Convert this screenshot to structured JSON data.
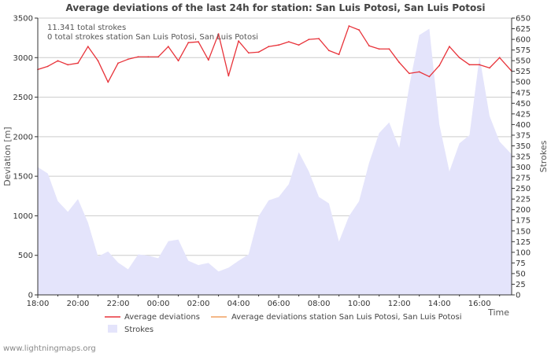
{
  "chart_data": {
    "type": "line",
    "title": "Average deviations of the last 24h for station: San Luis Potosi, San Luis Potosi",
    "xlabel": "Time",
    "ylabel": "Deviation  [m]",
    "y2label": "Strokes",
    "ylim": [
      0,
      3500
    ],
    "y2lim": [
      0,
      650
    ],
    "yticks": [
      0,
      500,
      1000,
      1500,
      2000,
      2500,
      3000,
      3500
    ],
    "y2ticks": [
      0,
      25,
      50,
      75,
      100,
      125,
      150,
      175,
      200,
      225,
      250,
      275,
      300,
      325,
      350,
      375,
      400,
      425,
      450,
      475,
      500,
      525,
      550,
      575,
      600,
      625,
      650
    ],
    "xlim": [
      0,
      23.6
    ],
    "xticks": [
      {
        "value": 0,
        "label": "18:00"
      },
      {
        "value": 2,
        "label": "20:00"
      },
      {
        "value": 4,
        "label": "22:00"
      },
      {
        "value": 6,
        "label": "00:00"
      },
      {
        "value": 8,
        "label": "02:00"
      },
      {
        "value": 10,
        "label": "04:00"
      },
      {
        "value": 12,
        "label": "06:00"
      },
      {
        "value": 14,
        "label": "08:00"
      },
      {
        "value": 16,
        "label": "10:00"
      },
      {
        "value": 18,
        "label": "12:00"
      },
      {
        "value": 20,
        "label": "14:00"
      },
      {
        "value": 22,
        "label": "16:00"
      }
    ],
    "annotations": [
      "11.341 total strokes",
      "0 total strokes station San Luis Potosi, San Luis Potosi"
    ],
    "series": [
      {
        "name": "Average deviations",
        "color": "#e8333a",
        "axis": "left",
        "x": [
          0,
          0.5,
          1,
          1.5,
          2,
          2.5,
          3,
          3.5,
          4,
          4.5,
          5,
          5.5,
          6,
          6.5,
          7,
          7.5,
          8,
          8.5,
          9,
          9.5,
          10,
          10.5,
          11,
          11.5,
          12,
          12.5,
          13,
          13.5,
          14,
          14.5,
          15,
          15.5,
          16,
          16.5,
          17,
          17.5,
          18,
          18.5,
          19,
          19.5,
          20,
          20.5,
          21,
          21.5,
          22,
          22.5,
          23,
          23.6
        ],
        "values": [
          2850,
          2890,
          2960,
          2910,
          2930,
          3140,
          2960,
          2690,
          2930,
          2980,
          3010,
          3010,
          3010,
          3140,
          2960,
          3190,
          3200,
          2970,
          3300,
          2770,
          3210,
          3060,
          3070,
          3140,
          3160,
          3200,
          3160,
          3230,
          3240,
          3090,
          3040,
          3400,
          3350,
          3150,
          3110,
          3110,
          2940,
          2800,
          2820,
          2760,
          2900,
          3140,
          3000,
          2910,
          2910,
          2870,
          3000,
          2830
        ]
      },
      {
        "name": "Average deviations station San Luis Potosi, San Luis Potosi",
        "color": "#f0a060",
        "axis": "left",
        "x": [],
        "values": []
      },
      {
        "name": "Strokes",
        "color": "#e4e4fb",
        "axis": "right",
        "type": "area",
        "x": [
          0,
          0.5,
          1,
          1.5,
          2,
          2.5,
          3,
          3.5,
          4,
          4.5,
          5,
          5.5,
          6,
          6.5,
          7,
          7.5,
          8,
          8.5,
          9,
          9.5,
          10,
          10.5,
          11,
          11.5,
          12,
          12.5,
          13,
          13.5,
          14,
          14.5,
          15,
          15.5,
          16,
          16.5,
          17,
          17.5,
          18,
          18.5,
          19,
          19.5,
          20,
          20.5,
          21,
          21.5,
          22,
          22.5,
          23,
          23.6
        ],
        "values": [
          300,
          285,
          220,
          195,
          225,
          170,
          90,
          102,
          76,
          60,
          95,
          92,
          86,
          126,
          130,
          80,
          70,
          75,
          55,
          64,
          80,
          95,
          185,
          222,
          230,
          260,
          335,
          290,
          230,
          215,
          125,
          185,
          220,
          310,
          380,
          405,
          345,
          490,
          610,
          625,
          400,
          290,
          356,
          375,
          560,
          420,
          360,
          330
        ]
      }
    ]
  },
  "legend": {
    "items": [
      {
        "label": "Average deviations",
        "color": "#e8333a"
      },
      {
        "label": "Average deviations station San Luis Potosi, San Luis Potosi",
        "color": "#f0a060"
      },
      {
        "label": "Strokes",
        "color": "#e4e4fb"
      }
    ]
  },
  "footer": {
    "credit": "www.lightningmaps.org"
  }
}
